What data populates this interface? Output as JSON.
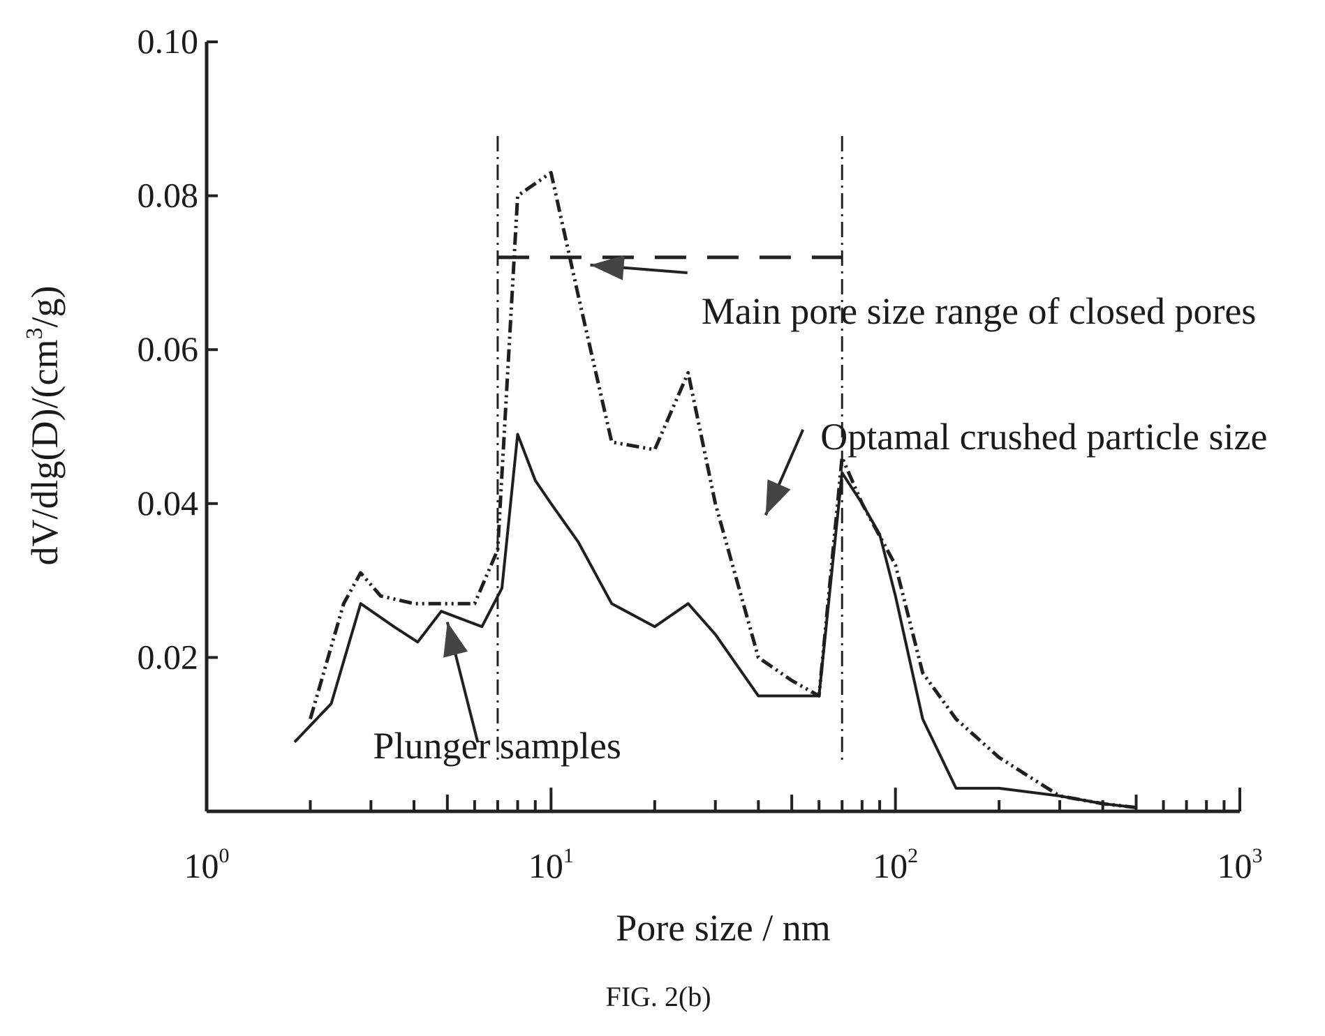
{
  "chart_data": {
    "type": "line",
    "xlabel": "Pore size / nm",
    "ylabel_parts": {
      "pre": "dV/dlg(D)/(cm",
      "sup": "3",
      "post": "/g)"
    },
    "xscale": "log",
    "xlim": [
      1,
      1000
    ],
    "ylim": [
      0,
      0.1
    ],
    "x_tick_labels": [
      {
        "base": "10",
        "exp": "0",
        "value": 1
      },
      {
        "base": "10",
        "exp": "1",
        "value": 10
      },
      {
        "base": "10",
        "exp": "2",
        "value": 100
      },
      {
        "base": "10",
        "exp": "3",
        "value": 1000
      }
    ],
    "y_ticks": [
      0.02,
      0.04,
      0.06,
      0.08,
      0.1
    ],
    "y_tick_labels": [
      "0.02",
      "0.04",
      "0.06",
      "0.08",
      "0.10"
    ],
    "series": [
      {
        "style": "solid",
        "x": [
          1.8,
          2.3,
          2.8,
          3.5,
          4.1,
          4.8,
          5.5,
          6.3,
          7.2,
          8.0,
          9.0,
          10.0,
          12.0,
          15.0,
          20.0,
          25.0,
          30.0,
          40.0,
          50.0,
          60.0,
          70.0,
          80.0,
          90.0,
          100.0,
          120.0,
          150.0,
          200.0,
          300.0,
          400.0,
          500.0
        ],
        "y": [
          0.009,
          0.014,
          0.027,
          0.024,
          0.022,
          0.026,
          0.025,
          0.024,
          0.029,
          0.049,
          0.043,
          0.04,
          0.035,
          0.027,
          0.024,
          0.027,
          0.023,
          0.015,
          0.015,
          0.015,
          0.044,
          0.04,
          0.036,
          0.028,
          0.012,
          0.003,
          0.003,
          0.002,
          0.001,
          0.0005
        ]
      },
      {
        "style": "dash-dot-dot",
        "x": [
          2.0,
          2.5,
          2.8,
          3.2,
          4.0,
          5.0,
          6.0,
          7.0,
          8.0,
          10.0,
          12.0,
          15.0,
          20.0,
          25.0,
          30.0,
          40.0,
          50.0,
          60.0,
          70.0,
          80.0,
          100.0,
          120.0,
          150.0,
          200.0,
          300.0,
          400.0,
          500.0
        ],
        "y": [
          0.012,
          0.027,
          0.031,
          0.028,
          0.027,
          0.027,
          0.027,
          0.034,
          0.08,
          0.083,
          0.067,
          0.048,
          0.047,
          0.057,
          0.04,
          0.02,
          0.017,
          0.015,
          0.046,
          0.04,
          0.032,
          0.018,
          0.012,
          0.007,
          0.002,
          0.001,
          0.0005
        ]
      }
    ],
    "reference_lines": {
      "vertical_x": [
        7.0,
        70.0
      ],
      "horizontal_y": 0.072,
      "horizontal_x_range": [
        7.0,
        70.0
      ]
    },
    "annotations": [
      {
        "id": "main_pore",
        "text": "Main pore size range of closed pores",
        "anchor_x": 13.0,
        "anchor_y": 0.071,
        "text_x": 30.0,
        "text_y": 0.065
      },
      {
        "id": "optimal",
        "text": "Optamal crushed particle size",
        "anchor_x": 42.0,
        "anchor_y": 0.0385,
        "text_x": 62.0,
        "text_y": 0.0487
      },
      {
        "id": "plunger",
        "text": "Plunger samples",
        "anchor_x": 5.0,
        "anchor_y": 0.0246,
        "text_x": 3.5,
        "text_y": 0.0085
      }
    ],
    "grid": false,
    "caption": "FIG. 2(b)"
  }
}
